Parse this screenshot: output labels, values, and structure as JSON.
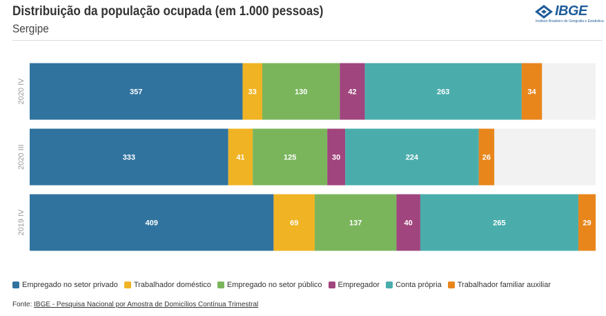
{
  "header": {
    "title": "Distribuição da população ocupada (em 1.000 pessoas)",
    "subtitle": "Sergipe"
  },
  "logo": {
    "text": "IBGE",
    "subtext": "Instituto Brasileiro de Geografia e Estatística",
    "color": "#1f5c99"
  },
  "chart_data": {
    "type": "bar",
    "orientation": "horizontal",
    "stacked": true,
    "categories": [
      "2020 IV",
      "2020 III",
      "2019 IV"
    ],
    "series": [
      {
        "name": "Empregado no setor privado",
        "color": "#31739f",
        "values": [
          357,
          333,
          409
        ]
      },
      {
        "name": "Trabalhador doméstico",
        "color": "#f0b323",
        "values": [
          33,
          41,
          69
        ]
      },
      {
        "name": "Empregado no setor público",
        "color": "#7ab55c",
        "values": [
          130,
          125,
          137
        ]
      },
      {
        "name": "Empregador",
        "color": "#a0457d",
        "values": [
          42,
          30,
          40
        ]
      },
      {
        "name": "Conta própria",
        "color": "#4aadac",
        "values": [
          263,
          224,
          265
        ]
      },
      {
        "name": "Trabalhador familiar auxiliar",
        "color": "#e8861c",
        "values": [
          34,
          26,
          29
        ]
      }
    ],
    "xlim": [
      0,
      949
    ],
    "legend_position": "bottom",
    "grid": false
  },
  "source": {
    "prefix": "Fonte: ",
    "link_text": "IBGE - Pesquisa Nacional por Amostra de Domicílios Contínua Trimestral"
  }
}
